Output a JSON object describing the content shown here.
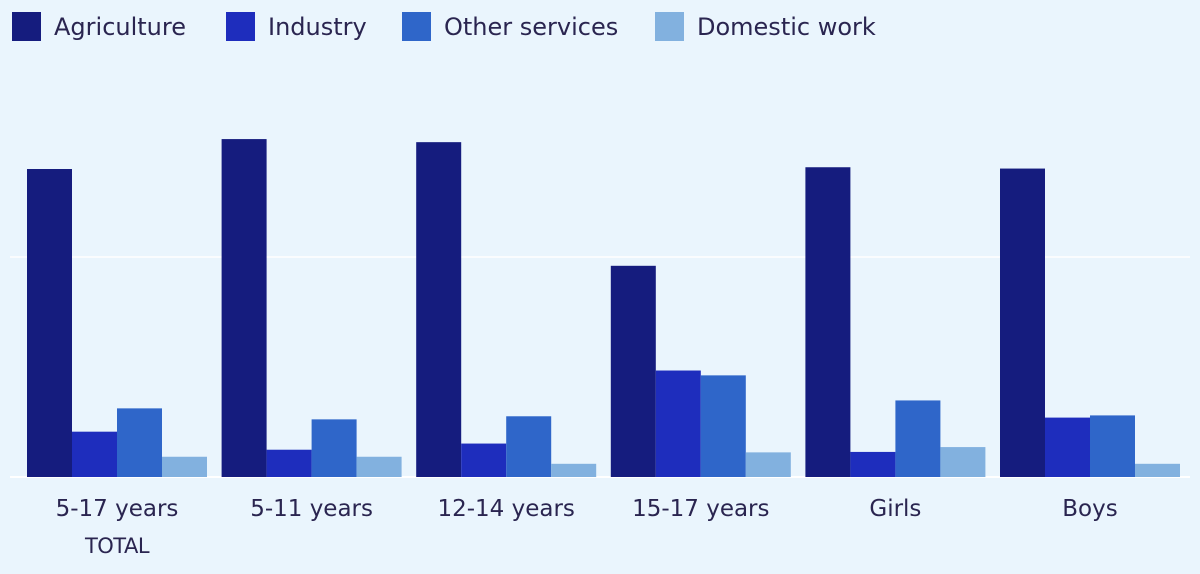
{
  "chart_data": {
    "type": "bar",
    "categories": [
      "5-17 years",
      "5-11 years",
      "12-14 years",
      "15-17 years",
      "Girls",
      "Boys"
    ],
    "category_sublabels": [
      "TOTAL",
      "",
      "",
      "",
      "",
      ""
    ],
    "series": [
      {
        "name": "Agriculture",
        "values": [
          70.0,
          76.8,
          76.1,
          48.0,
          70.4,
          70.1
        ]
      },
      {
        "name": "Industry",
        "values": [
          10.3,
          6.2,
          7.6,
          24.2,
          5.7,
          13.5
        ]
      },
      {
        "name": "Other services",
        "values": [
          15.6,
          13.1,
          13.8,
          23.1,
          17.4,
          14.0
        ]
      },
      {
        "name": "Domestic work",
        "values": [
          4.6,
          4.6,
          3.0,
          5.6,
          6.8,
          3.0
        ]
      }
    ],
    "ylim": [
      0,
      100
    ],
    "gridlines": [
      50
    ],
    "legend_position": "top-left",
    "colors": [
      "#151c7e",
      "#1e2dbd",
      "#2f66c9",
      "#82b1df"
    ],
    "background": "#eaf5fd",
    "gridline_color": "#ffffff"
  }
}
